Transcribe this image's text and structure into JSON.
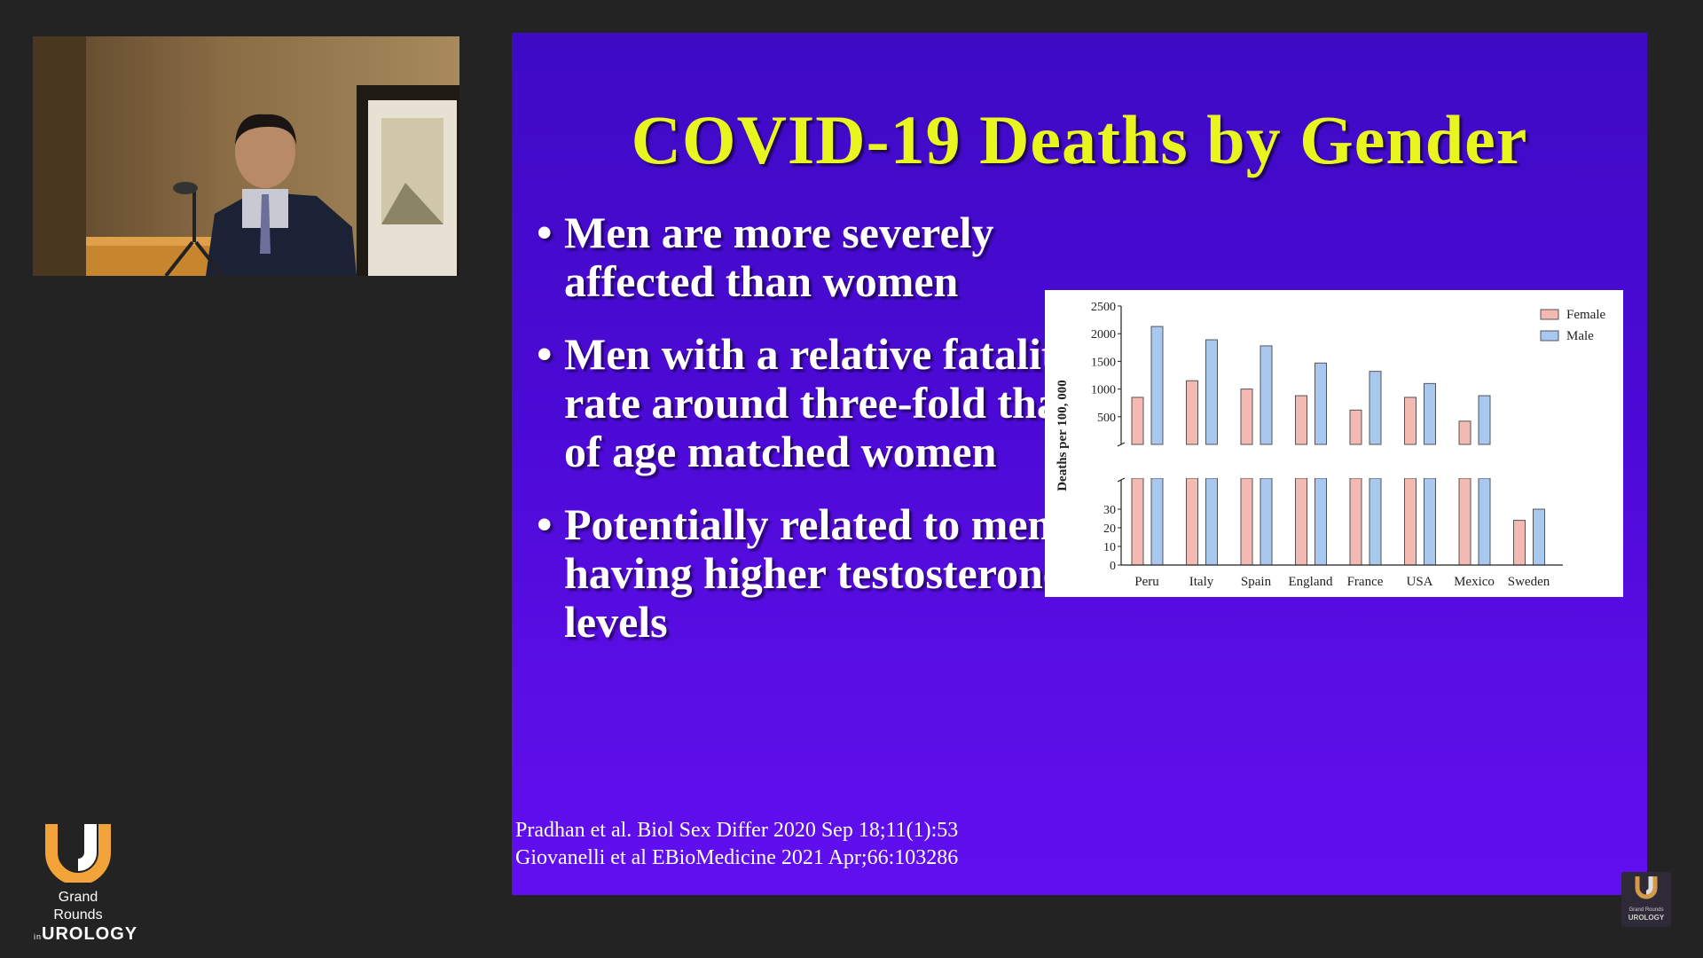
{
  "slide": {
    "title": "COVID-19 Deaths by Gender",
    "bullet_symbol": "•",
    "bullets": [
      "Men are more severely affected than women",
      "Men with a relative fatality rate around three-fold that of age matched women",
      "Potentially related to men having higher testosterone levels"
    ],
    "citations": [
      "Pradhan et al. Biol Sex Differ 2020 Sep 18;11(1):53",
      "Giovanelli et al EBioMedicine 2021 Apr;66:103286"
    ]
  },
  "chart_data": {
    "type": "bar",
    "ylabel": "Deaths per 100, 000",
    "y_upper_ticks": [
      500,
      1000,
      1500,
      2000,
      2500
    ],
    "y_lower_ticks": [
      0,
      10,
      20,
      30
    ],
    "y_axis_break": true,
    "legend_position": "top-right",
    "categories": [
      "Peru",
      "Italy",
      "Spain",
      "England",
      "France",
      "USA",
      "Mexico",
      "Sweden"
    ],
    "series": [
      {
        "name": "Female",
        "color": "#f4b9b3",
        "values": [
          850,
          1150,
          1000,
          880,
          620,
          850,
          420,
          24
        ]
      },
      {
        "name": "Male",
        "color": "#a8c8ef",
        "values": [
          2130,
          1890,
          1780,
          1470,
          1320,
          1100,
          880,
          30
        ]
      }
    ]
  },
  "branding": {
    "logo_line1": "Grand Rounds",
    "logo_prefix": "in",
    "logo_line2": "UROLOGY",
    "accent_color": "#f2a33a",
    "small_logo_line1": "Grand Rounds",
    "small_logo_line2": "UROLOGY"
  }
}
